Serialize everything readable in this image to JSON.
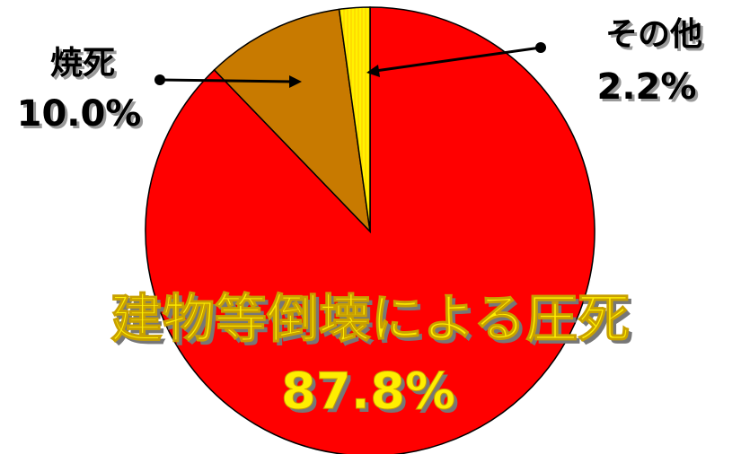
{
  "chart_data": {
    "type": "pie",
    "title": "",
    "start_angle_deg": 0,
    "direction": "clockwise",
    "slices": [
      {
        "name": "建物等倒壊による圧死",
        "value": 87.8,
        "value_label": "87.8%",
        "color": "#ff0000",
        "label_color": "#ffee00"
      },
      {
        "name": "焼死",
        "value": 10.0,
        "value_label": "10.0%",
        "color": "#c87a00",
        "label_color": "#000000"
      },
      {
        "name": "その他",
        "value": 2.2,
        "value_label": "2.2%",
        "color": "#ffdd00",
        "label_color": "#000000"
      }
    ]
  }
}
